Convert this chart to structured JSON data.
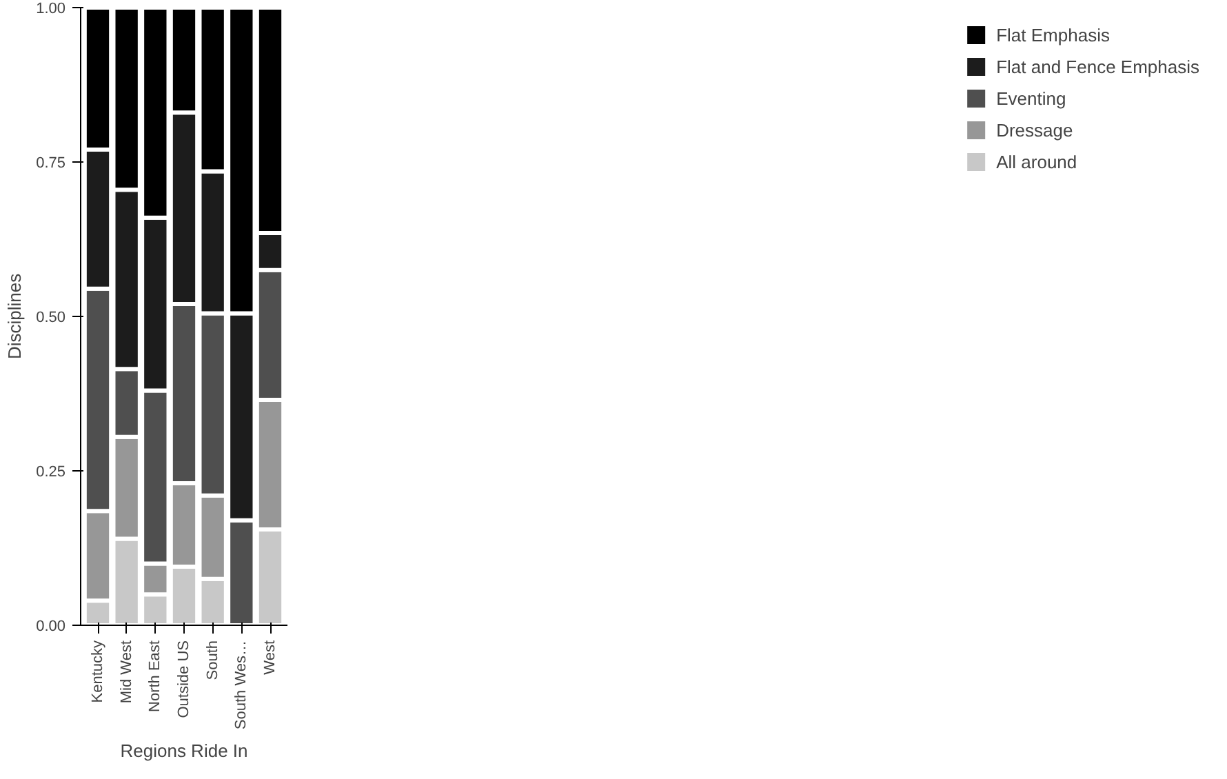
{
  "chart_data": {
    "type": "bar",
    "stacked": true,
    "xlabel": "Regions Ride In",
    "ylabel": "Disciplines",
    "categories": [
      "Kentucky",
      "Mid West",
      "North East",
      "Outside US",
      "South",
      "South Wes…",
      "West"
    ],
    "ylim": [
      0,
      1
    ],
    "yticks": [
      {
        "value": 0,
        "label": "0.00"
      },
      {
        "value": 0.25,
        "label": "0.25"
      },
      {
        "value": 0.5,
        "label": "0.50"
      },
      {
        "value": 0.75,
        "label": "0.75"
      },
      {
        "value": 1,
        "label": "1.00"
      }
    ],
    "legend": "right",
    "grid": false,
    "series": [
      {
        "name": "All around",
        "color": "#c8c8c8",
        "values": [
          0.04,
          0.14,
          0.05,
          0.095,
          0.075,
          0,
          0.155
        ]
      },
      {
        "name": "Dressage",
        "color": "#979797",
        "values": [
          0.145,
          0.165,
          0.05,
          0.135,
          0.135,
          0,
          0.21
        ]
      },
      {
        "name": "Eventing",
        "color": "#4f4f4f",
        "values": [
          0.36,
          0.11,
          0.28,
          0.29,
          0.295,
          0.17,
          0.21
        ]
      },
      {
        "name": "Flat and Fence Emphasis",
        "color": "#1c1c1c",
        "values": [
          0.225,
          0.29,
          0.28,
          0.31,
          0.23,
          0.335,
          0.06
        ]
      },
      {
        "name": "Flat Emphasis",
        "color": "#000000",
        "values": [
          0.23,
          0.295,
          0.34,
          0.17,
          0.265,
          0.495,
          0.365
        ]
      }
    ]
  }
}
